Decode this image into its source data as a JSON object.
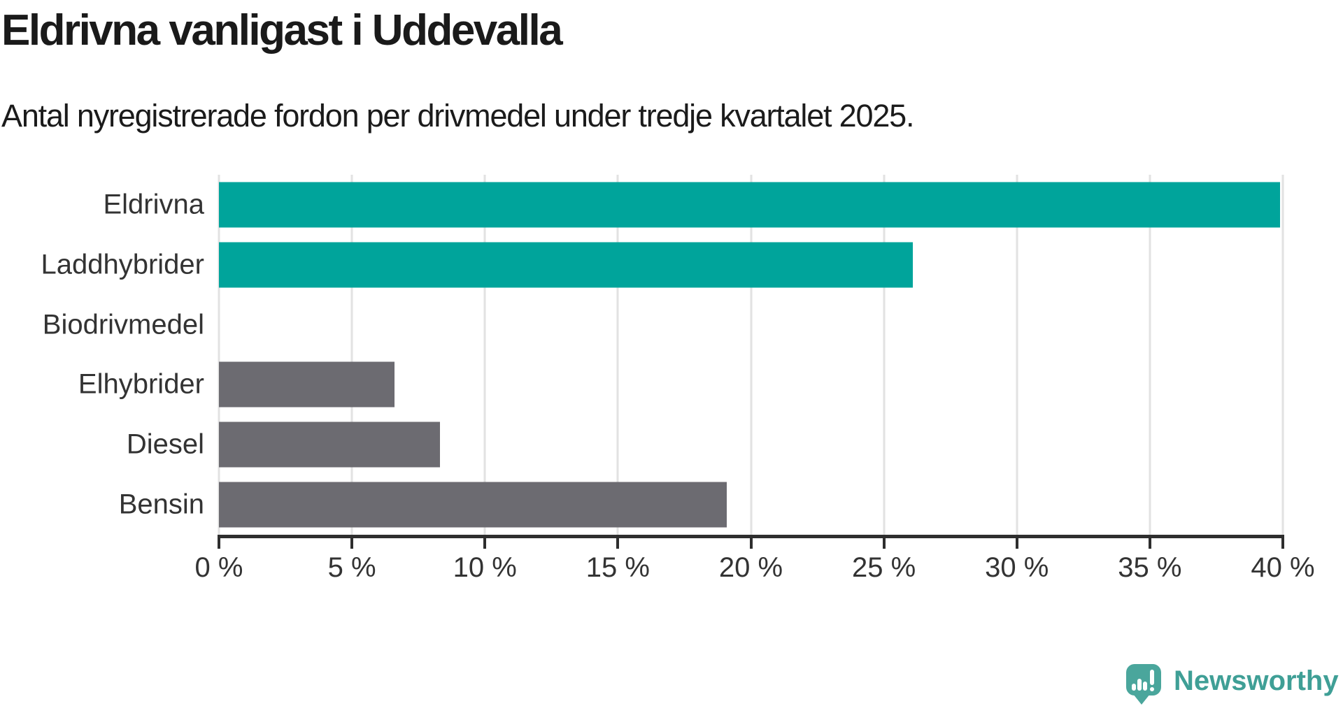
{
  "header": {
    "title": "Eldrivna vanligast i Uddevalla",
    "subtitle": "Antal nyregistrerade fordon per drivmedel under tredje kvartalet 2025."
  },
  "chart_data": {
    "type": "bar",
    "orientation": "horizontal",
    "title": "Eldrivna vanligast i Uddevalla",
    "subtitle": "Antal nyregistrerade fordon per drivmedel under tredje kvartalet 2025.",
    "categories": [
      "Eldrivna",
      "Laddhybrider",
      "Biodrivmedel",
      "Elhybrider",
      "Diesel",
      "Bensin"
    ],
    "values": [
      39.9,
      26.1,
      0,
      6.6,
      8.3,
      19.1
    ],
    "unit": "%",
    "xlim": [
      0,
      40
    ],
    "x_ticks": [
      0,
      5,
      10,
      15,
      20,
      25,
      30,
      35,
      40
    ],
    "x_tick_labels": [
      "0 %",
      "5 %",
      "10 %",
      "15 %",
      "20 %",
      "25 %",
      "30 %",
      "35 %",
      "40 %"
    ],
    "bar_colors": [
      "#00a49b",
      "#00a49b",
      "#6c6b71",
      "#6c6b71",
      "#6c6b71",
      "#6c6b71"
    ],
    "grid": "vertical",
    "legend": "none"
  },
  "colors": {
    "accent_teal": "#00a49b",
    "bar_gray": "#6c6b71",
    "gridline": "#e2e2e2",
    "axis": "#2e2e2e",
    "text_dark": "#1a1a1a",
    "text_label": "#333333",
    "logo_teal": "#4aa69c",
    "logo_text_teal": "#3f9f96"
  },
  "footer": {
    "brand": "Newsworthy"
  }
}
